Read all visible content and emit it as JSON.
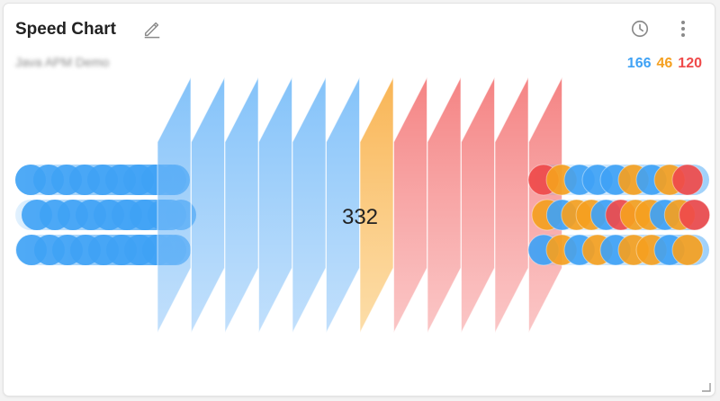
{
  "widget": {
    "title": "Speed Chart",
    "subtitle": "Java APM Demo",
    "edit_icon": "pencil-icon",
    "history_icon": "clock-icon",
    "menu_icon": "more-vertical-icon",
    "resize_icon": "resize-corner-icon"
  },
  "counts": {
    "normal": "166",
    "warning": "46",
    "critical": "120"
  },
  "center_value": "332",
  "colors": {
    "normal": "#3fa2f5",
    "warning": "#f5a020",
    "critical": "#ef4a4a"
  },
  "chart_data": {
    "type": "speed",
    "total": 332,
    "series": [
      {
        "name": "normal",
        "value": 166
      },
      {
        "name": "warning",
        "value": 46
      },
      {
        "name": "critical",
        "value": 120
      }
    ],
    "panels": [
      "normal",
      "normal",
      "normal",
      "normal",
      "normal",
      "normal",
      "warning",
      "critical",
      "critical",
      "critical",
      "critical",
      "critical"
    ],
    "incoming_lanes": 3,
    "outgoing_lanes": 3
  }
}
